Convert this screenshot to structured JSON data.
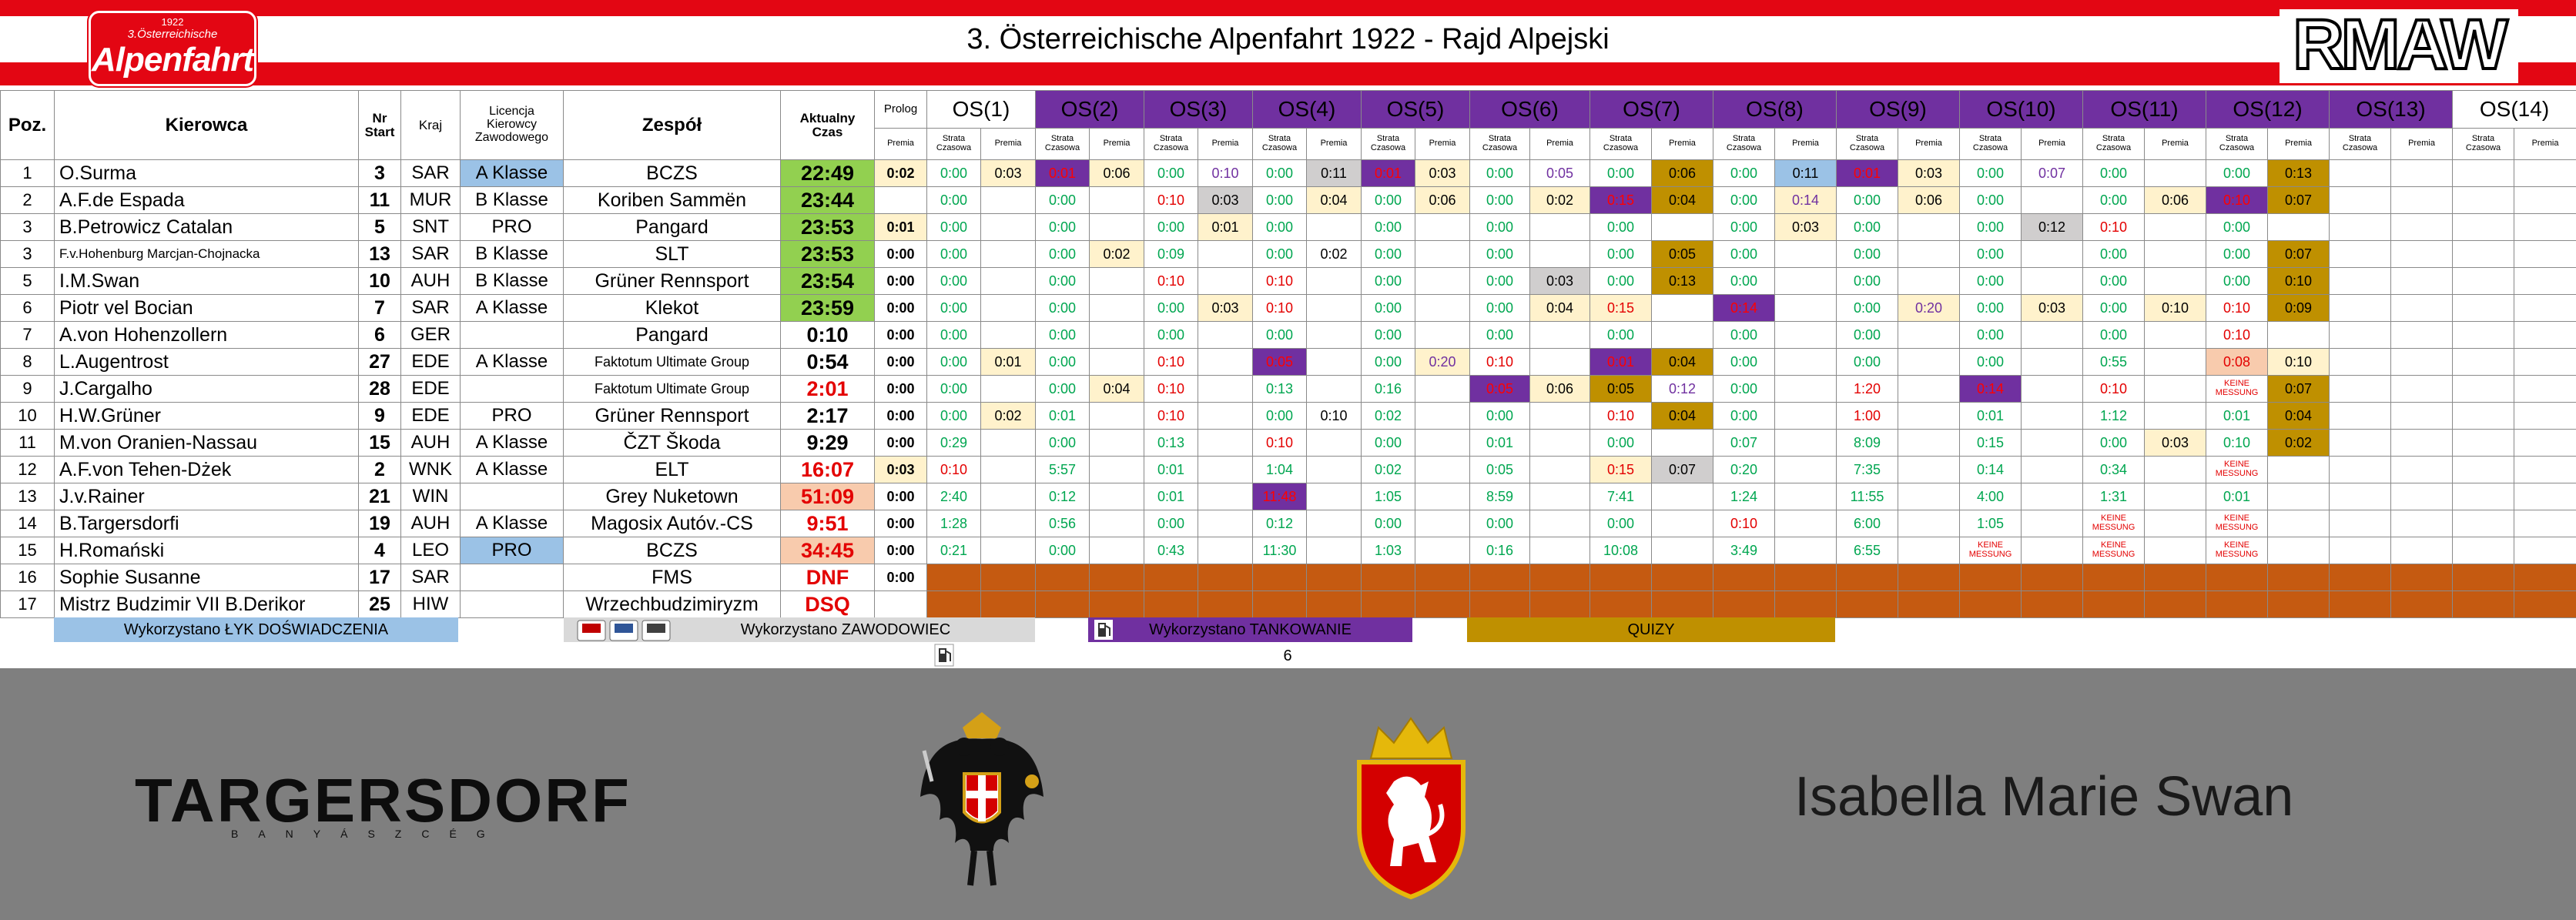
{
  "header": {
    "title": "3. Österreichische Alpenfahrt 1922 - Rajd Alpejski",
    "logo_left_year": "1922",
    "logo_left_line": "3.Österreichische",
    "logo_left_name": "Alpenfahrt",
    "logo_right": "RMAW"
  },
  "table": {
    "columns": [
      "Poz.",
      "Kierowca",
      "Nr\nStart",
      "Kraj",
      "Licencja\nKierowcy\nZawodowego",
      "Zespół",
      "Aktualny\nCzas",
      "Prolog"
    ],
    "prolog_sub": "Premia",
    "stages": [
      "OS(1)",
      "OS(2)",
      "OS(3)",
      "OS(4)",
      "OS(5)",
      "OS(6)",
      "OS(7)",
      "OS(8)",
      "OS(9)",
      "OS(10)",
      "OS(11)",
      "OS(12)",
      "OS(13)",
      "OS(14)"
    ],
    "sub": [
      "Strata\nCzasowa",
      "Premia"
    ],
    "rows": [
      {
        "pos": 1,
        "driver": "O.Surma",
        "nr": 3,
        "country": "SAR",
        "licence": "A Klasse",
        "team": "BCZS",
        "time": "22:49",
        "prolog": "0:02",
        "stages": [
          [
            "0:00",
            "0:03"
          ],
          [
            "0:01",
            "0:06"
          ],
          [
            "0:00",
            "0:10"
          ],
          [
            "0:00",
            "0:11"
          ],
          [
            "0:01",
            "0:03"
          ],
          [
            "0:00",
            "0:05"
          ],
          [
            "0:00",
            "0:06"
          ],
          [
            "0:00",
            "0:11"
          ],
          [
            "0:01",
            "0:03"
          ],
          [
            "0:00",
            "0:07"
          ],
          [
            "0:00",
            null
          ],
          [
            "0:00",
            "0:13"
          ]
        ]
      },
      {
        "pos": 2,
        "driver": "A.F.de Espada",
        "nr": 11,
        "country": "MUR",
        "licence": "B Klasse",
        "team": "Koriben Sammën",
        "time": "23:44",
        "prolog": null,
        "stages": [
          [
            "0:00",
            null
          ],
          [
            "0:00",
            null
          ],
          [
            "0:10",
            "0:03"
          ],
          [
            "0:00",
            "0:04"
          ],
          [
            "0:00",
            "0:06"
          ],
          [
            "0:00",
            "0:02"
          ],
          [
            "0:15",
            "0:04"
          ],
          [
            "0:00",
            "0:14"
          ],
          [
            "0:00",
            "0:06"
          ],
          [
            "0:00",
            null
          ],
          [
            "0:00",
            "0:06"
          ],
          [
            "0:10",
            "0:07"
          ]
        ]
      },
      {
        "pos": 3,
        "driver": "B.Petrowicz Catalan",
        "nr": 5,
        "country": "SNT",
        "licence": "PRO",
        "team": "Pangard",
        "time": "23:53",
        "prolog": "0:01",
        "stages": [
          [
            "0:00",
            null
          ],
          [
            "0:00",
            null
          ],
          [
            "0:00",
            "0:01"
          ],
          [
            "0:00",
            null
          ],
          [
            "0:00",
            null
          ],
          [
            "0:00",
            null
          ],
          [
            "0:00",
            null
          ],
          [
            "0:00",
            "0:03"
          ],
          [
            "0:00",
            null
          ],
          [
            "0:00",
            "0:12"
          ],
          [
            "0:10",
            null
          ],
          [
            "0:00",
            null
          ]
        ]
      },
      {
        "pos": 3,
        "driver": "F.v.Hohenburg Marcjan-Chojnacka",
        "nr": 13,
        "country": "SAR",
        "licence": "B Klasse",
        "team": "SLT",
        "time": "23:53",
        "prolog": "0:00",
        "stages": [
          [
            "0:00",
            null
          ],
          [
            "0:00",
            "0:02"
          ],
          [
            "0:09",
            null
          ],
          [
            "0:00",
            "0:02"
          ],
          [
            "0:00",
            null
          ],
          [
            "0:00",
            null
          ],
          [
            "0:00",
            "0:05"
          ],
          [
            "0:00",
            null
          ],
          [
            "0:00",
            null
          ],
          [
            "0:00",
            null
          ],
          [
            "0:00",
            null
          ],
          [
            "0:00",
            "0:07"
          ]
        ]
      },
      {
        "pos": 5,
        "driver": "I.M.Swan",
        "nr": 10,
        "country": "AUH",
        "licence": "B Klasse",
        "team": "Grüner Rennsport",
        "time": "23:54",
        "prolog": "0:00",
        "stages": [
          [
            "0:00",
            null
          ],
          [
            "0:00",
            null
          ],
          [
            "0:10",
            null
          ],
          [
            "0:10",
            null
          ],
          [
            "0:00",
            null
          ],
          [
            "0:00",
            "0:03"
          ],
          [
            "0:00",
            "0:13"
          ],
          [
            "0:00",
            null
          ],
          [
            "0:00",
            null
          ],
          [
            "0:00",
            null
          ],
          [
            "0:00",
            null
          ],
          [
            "0:00",
            "0:10"
          ]
        ]
      },
      {
        "pos": 6,
        "driver": "Piotr vel Bocian",
        "nr": 7,
        "country": "SAR",
        "licence": "A Klasse",
        "team": "Klekot",
        "time": "23:59",
        "prolog": "0:00",
        "stages": [
          [
            "0:00",
            null
          ],
          [
            "0:00",
            null
          ],
          [
            "0:00",
            "0:03"
          ],
          [
            "0:10",
            null
          ],
          [
            "0:00",
            null
          ],
          [
            "0:00",
            "0:04"
          ],
          [
            "0:15",
            null
          ],
          [
            "0:14",
            null
          ],
          [
            "0:00",
            "0:20"
          ],
          [
            "0:00",
            "0:03"
          ],
          [
            "0:00",
            "0:10"
          ],
          [
            "0:10",
            "0:09"
          ]
        ]
      },
      {
        "pos": 7,
        "driver": "A.von Hohenzollern",
        "nr": 6,
        "country": "GER",
        "licence": null,
        "team": "Pangard",
        "time": "0:10",
        "prolog": "0:00",
        "stages": [
          [
            "0:00",
            null
          ],
          [
            "0:00",
            null
          ],
          [
            "0:00",
            null
          ],
          [
            "0:00",
            null
          ],
          [
            "0:00",
            null
          ],
          [
            "0:00",
            null
          ],
          [
            "0:00",
            null
          ],
          [
            "0:00",
            null
          ],
          [
            "0:00",
            null
          ],
          [
            "0:00",
            null
          ],
          [
            "0:00",
            null
          ],
          [
            "0:10",
            null
          ]
        ]
      },
      {
        "pos": 8,
        "driver": "L.Augentrost",
        "nr": 27,
        "country": "EDE",
        "licence": "A Klasse",
        "team": "Faktotum Ultimate Group",
        "time": "0:54",
        "prolog": "0:00",
        "stages": [
          [
            "0:00",
            "0:01"
          ],
          [
            "0:00",
            null
          ],
          [
            "0:10",
            null
          ],
          [
            "0:05",
            null
          ],
          [
            "0:00",
            "0:20"
          ],
          [
            "0:10",
            null
          ],
          [
            "0:01",
            "0:04"
          ],
          [
            "0:00",
            null
          ],
          [
            "0:00",
            null
          ],
          [
            "0:00",
            null
          ],
          [
            "0:55",
            null
          ],
          [
            "0:08",
            "0:10"
          ]
        ]
      },
      {
        "pos": 9,
        "driver": "J.Cargalho",
        "nr": 28,
        "country": "EDE",
        "licence": null,
        "team": "Faktotum Ultimate Group",
        "time": "2:01",
        "prolog": "0:00",
        "stages": [
          [
            "0:00",
            null
          ],
          [
            "0:00",
            "0:04"
          ],
          [
            "0:10",
            null
          ],
          [
            "0:13",
            null
          ],
          [
            "0:16",
            null
          ],
          [
            "0:05",
            "0:06"
          ],
          [
            "0:05",
            "0:12"
          ],
          [
            "0:00",
            null
          ],
          [
            "1:20",
            null
          ],
          [
            "0:14",
            null
          ],
          [
            "0:10",
            null
          ],
          [
            "KEINE\nMESSUNG",
            "0:07"
          ]
        ]
      },
      {
        "pos": 10,
        "driver": "H.W.Grüner",
        "nr": 9,
        "country": "EDE",
        "licence": "PRO",
        "team": "Grüner Rennsport",
        "time": "2:17",
        "prolog": "0:00",
        "stages": [
          [
            "0:00",
            "0:02"
          ],
          [
            "0:01",
            null
          ],
          [
            "0:10",
            null
          ],
          [
            "0:00",
            "0:10"
          ],
          [
            "0:02",
            null
          ],
          [
            "0:00",
            null
          ],
          [
            "0:10",
            "0:04"
          ],
          [
            "0:00",
            null
          ],
          [
            "1:00",
            null
          ],
          [
            "0:01",
            null
          ],
          [
            "1:12",
            null
          ],
          [
            "0:01",
            "0:04"
          ]
        ]
      },
      {
        "pos": 11,
        "driver": "M.von Oranien-Nassau",
        "nr": 15,
        "country": "AUH",
        "licence": "A Klasse",
        "team": "ČZT Škoda",
        "time": "9:29",
        "prolog": "0:00",
        "stages": [
          [
            "0:29",
            null
          ],
          [
            "0:00",
            null
          ],
          [
            "0:13",
            null
          ],
          [
            "0:10",
            null
          ],
          [
            "0:00",
            null
          ],
          [
            "0:01",
            null
          ],
          [
            "0:00",
            null
          ],
          [
            "0:07",
            null
          ],
          [
            "8:09",
            null
          ],
          [
            "0:15",
            null
          ],
          [
            "0:00",
            "0:03"
          ],
          [
            "0:10",
            "0:02"
          ]
        ]
      },
      {
        "pos": 12,
        "driver": "A.F.von Tehen-Dżek",
        "nr": 2,
        "country": "WNK",
        "licence": "A Klasse",
        "team": "ELT",
        "time": "16:07",
        "prolog": "0:03",
        "stages": [
          [
            "0:10",
            null
          ],
          [
            "5:57",
            null
          ],
          [
            "0:01",
            null
          ],
          [
            "1:04",
            null
          ],
          [
            "0:02",
            null
          ],
          [
            "0:05",
            null
          ],
          [
            "0:15",
            "0:07"
          ],
          [
            "0:20",
            null
          ],
          [
            "7:35",
            null
          ],
          [
            "0:14",
            null
          ],
          [
            "0:34",
            null
          ],
          [
            "KEINE\nMESSUNG",
            null
          ]
        ]
      },
      {
        "pos": 13,
        "driver": "J.v.Rainer",
        "nr": 21,
        "country": "WIN",
        "licence": null,
        "team": "Grey Nuketown",
        "time": "51:09",
        "prolog": "0:00",
        "stages": [
          [
            "2:40",
            null
          ],
          [
            "0:12",
            null
          ],
          [
            "0:01",
            null
          ],
          [
            "11:48",
            null
          ],
          [
            "1:05",
            null
          ],
          [
            "8:59",
            null
          ],
          [
            "7:41",
            null
          ],
          [
            "1:24",
            null
          ],
          [
            "11:55",
            null
          ],
          [
            "4:00",
            null
          ],
          [
            "1:31",
            null
          ],
          [
            "0:01",
            null
          ]
        ]
      },
      {
        "pos": 14,
        "driver": "B.Targersdorfi",
        "nr": 19,
        "country": "AUH",
        "licence": "A Klasse",
        "team": "Magosix Autóv.-CS",
        "time": "9:51",
        "prolog": "0:00",
        "stages": [
          [
            "1:28",
            null
          ],
          [
            "0:56",
            null
          ],
          [
            "0:00",
            null
          ],
          [
            "0:12",
            null
          ],
          [
            "0:00",
            null
          ],
          [
            "0:00",
            null
          ],
          [
            "0:00",
            null
          ],
          [
            "0:10",
            null
          ],
          [
            "6:00",
            null
          ],
          [
            "1:05",
            null
          ],
          [
            "KEINE\nMESSUNG",
            null
          ],
          [
            "KEINE\nMESSUNG",
            null
          ]
        ]
      },
      {
        "pos": 15,
        "driver": "H.Romański",
        "nr": 4,
        "country": "LEO",
        "licence": "PRO",
        "team": "BCZS",
        "time": "34:45",
        "prolog": "0:00",
        "stages": [
          [
            "0:21",
            null
          ],
          [
            "0:00",
            null
          ],
          [
            "0:43",
            null
          ],
          [
            "11:30",
            null
          ],
          [
            "1:03",
            null
          ],
          [
            "0:16",
            null
          ],
          [
            "10:08",
            null
          ],
          [
            "3:49",
            null
          ],
          [
            "6:55",
            null
          ],
          [
            "KEINE\nMESSUNG",
            null
          ],
          [
            "KEINE\nMESSUNG",
            null
          ],
          [
            "KEINE\nMESSUNG",
            null
          ]
        ]
      },
      {
        "pos": 16,
        "driver": "Sophie Susanne",
        "nr": 17,
        "country": "SAR",
        "licence": null,
        "team": "FMS",
        "time": "DNF",
        "prolog": "0:00"
      },
      {
        "pos": 17,
        "driver": "Mistrz Budzimir VII B.Derikor",
        "nr": 25,
        "country": "HIW",
        "licence": null,
        "team": "Wrzechbudzimiryzm",
        "time": "DSQ",
        "prolog": null
      }
    ]
  },
  "legend": {
    "experience": "Wykorzystano ŁYK DOŚWIADCZENIA",
    "professional": "Wykorzystano ZAWODOWIEC",
    "refuel": "Wykorzystano TANKOWANIE",
    "quiz": "QUIZY"
  },
  "page_number": 6,
  "footer": {
    "sponsor": "TARGERSDORF",
    "sponsor_sub": "BANYÁSZCÉG",
    "signature": "Isabella Marie Swan"
  }
}
